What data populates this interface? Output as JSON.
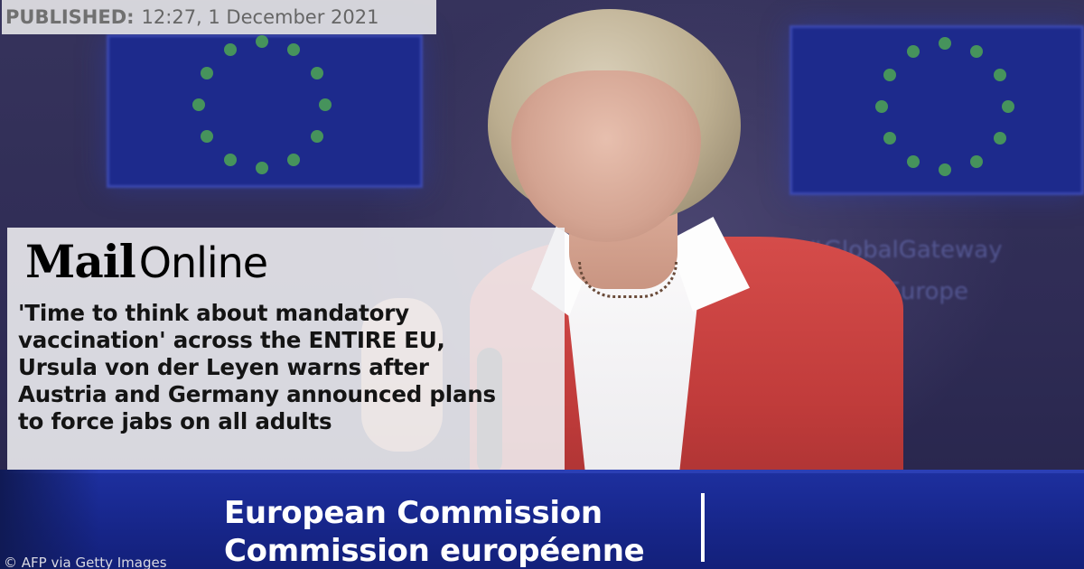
{
  "published": {
    "label": "PUBLISHED:",
    "datetime": "12:27, 1 December 2021"
  },
  "brand": {
    "mail": "Mail",
    "online": "Online"
  },
  "headline": {
    "lines": [
      "'Time to think about mandatory",
      "vaccination' across the ENTIRE EU,",
      "Ursula von der Leyen warns after",
      "Austria and Germany announced plans",
      "to force jabs on all adults"
    ]
  },
  "podium": {
    "line1": "European Commission",
    "line2": "Commission européenne"
  },
  "wall_text": {
    "line1": "#GlobalGateway",
    "line2": "#TeamEurope"
  },
  "photo_credit": "© AFP via Getty Images",
  "colors": {
    "eu_blue": "#1d2a8c",
    "eu_star": "#4ea654",
    "jacket_red": "#c13c3b",
    "podium_blue": "#17268a"
  }
}
